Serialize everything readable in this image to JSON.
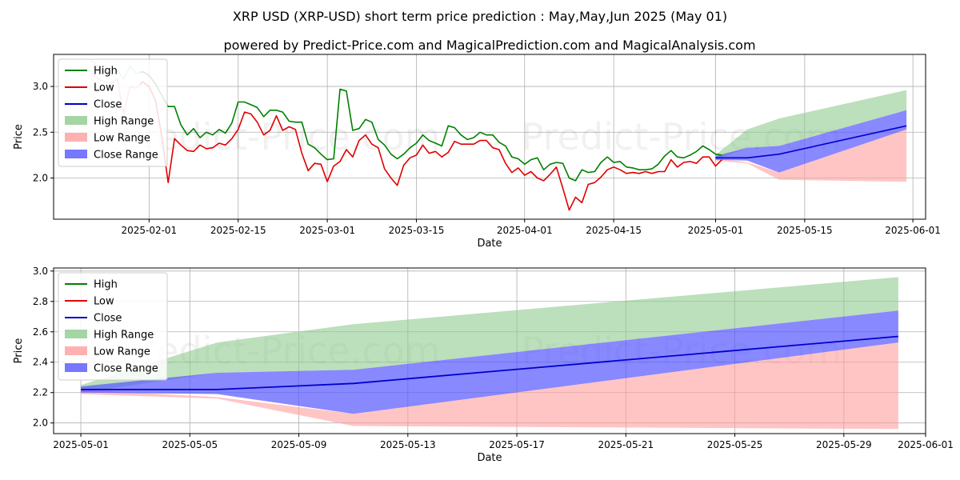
{
  "title_line1": "XRP USD (XRP-USD) short term price prediction : May,May,Jun 2025 (May 01)",
  "title_line2": "powered by Predict-Price.com and MagicalPrediction.com and MagicalAnalysis.com",
  "watermark": "Predict-Price.com",
  "colors": {
    "high": "#008000",
    "low": "#e00000",
    "close": "#0000cc",
    "high_range": "#8fca8f",
    "low_range": "#ff9e9e",
    "close_range": "#5555ff"
  },
  "chart_data": [
    {
      "type": "line",
      "xlabel": "Date",
      "ylabel": "Price",
      "x_type": "date",
      "xlim": [
        "2025-01-17",
        "2025-06-03"
      ],
      "ylim": [
        1.55,
        3.35
      ],
      "grid": true,
      "legend_position": "top-left",
      "x_ticks": [
        "2025-02-01",
        "2025-02-15",
        "2025-03-01",
        "2025-03-15",
        "2025-04-01",
        "2025-04-15",
        "2025-05-01",
        "2025-05-15",
        "2025-06-01"
      ],
      "y_ticks": [
        "2.0",
        "2.5",
        "3.0"
      ],
      "legend": [
        "High",
        "Low",
        "Close",
        "High Range",
        "Low Range",
        "Close Range"
      ],
      "history_start": "2025-01-23",
      "high_hist": [
        3.28,
        3.22,
        3.15,
        3.12,
        3.18,
        3.08,
        3.22,
        3.14,
        3.16,
        3.12,
        3.03,
        2.9,
        2.78,
        2.78,
        2.58,
        2.47,
        2.54,
        2.44,
        2.5,
        2.47,
        2.53,
        2.49,
        2.6,
        2.83,
        2.83,
        2.8,
        2.77,
        2.67,
        2.74,
        2.74,
        2.72,
        2.62,
        2.61,
        2.61,
        2.37,
        2.33,
        2.26,
        2.2,
        2.21,
        2.97,
        2.95,
        2.52,
        2.54,
        2.64,
        2.61,
        2.42,
        2.36,
        2.26,
        2.21,
        2.26,
        2.33,
        2.38,
        2.47,
        2.41,
        2.38,
        2.35,
        2.57,
        2.55,
        2.47,
        2.42,
        2.44,
        2.5,
        2.47,
        2.47,
        2.39,
        2.35,
        2.23,
        2.21,
        2.15,
        2.2,
        2.22,
        2.09,
        2.15,
        2.17,
        2.16,
        2.0,
        1.97,
        2.09,
        2.06,
        2.07,
        2.17,
        2.23,
        2.17,
        2.18,
        2.12,
        2.11,
        2.09,
        2.09,
        2.1,
        2.15,
        2.24,
        2.3,
        2.23,
        2.22,
        2.25,
        2.29,
        2.35,
        2.31,
        2.26,
        2.25
      ],
      "low_hist": [
        3.15,
        3.08,
        3.05,
        3.03,
        3.08,
        2.7,
        3.0,
        2.98,
        3.05,
        3.0,
        2.85,
        2.45,
        1.95,
        2.43,
        2.36,
        2.3,
        2.29,
        2.36,
        2.32,
        2.33,
        2.38,
        2.36,
        2.43,
        2.53,
        2.72,
        2.7,
        2.61,
        2.47,
        2.52,
        2.68,
        2.52,
        2.56,
        2.53,
        2.27,
        2.08,
        2.16,
        2.15,
        1.96,
        2.13,
        2.18,
        2.31,
        2.23,
        2.41,
        2.47,
        2.37,
        2.33,
        2.1,
        2.0,
        1.92,
        2.14,
        2.22,
        2.25,
        2.36,
        2.27,
        2.29,
        2.23,
        2.28,
        2.4,
        2.37,
        2.37,
        2.37,
        2.41,
        2.41,
        2.33,
        2.31,
        2.16,
        2.06,
        2.11,
        2.03,
        2.07,
        2.0,
        1.97,
        2.04,
        2.12,
        1.89,
        1.65,
        1.79,
        1.73,
        1.93,
        1.95,
        2.01,
        2.09,
        2.12,
        2.09,
        2.05,
        2.06,
        2.05,
        2.07,
        2.05,
        2.07,
        2.07,
        2.2,
        2.12,
        2.17,
        2.18,
        2.16,
        2.23,
        2.23,
        2.13,
        2.2
      ]
    },
    {
      "type": "area",
      "xlabel": "Date",
      "ylabel": "Price",
      "x_type": "date",
      "xlim": [
        "2025-04-30",
        "2025-06-01"
      ],
      "ylim": [
        1.93,
        3.02
      ],
      "grid": true,
      "legend_position": "top-left",
      "x_ticks": [
        "2025-05-01",
        "2025-05-05",
        "2025-05-09",
        "2025-05-13",
        "2025-05-17",
        "2025-05-21",
        "2025-05-25",
        "2025-05-29",
        "2025-06-01"
      ],
      "y_ticks": [
        "2.0",
        "2.2",
        "2.4",
        "2.6",
        "2.8",
        "3.0"
      ],
      "legend": [
        "High",
        "Low",
        "Close",
        "High Range",
        "Low Range",
        "Close Range"
      ],
      "forecast_dates": [
        "2025-05-01",
        "2025-05-06",
        "2025-05-11",
        "2025-05-31"
      ],
      "high_range_upper": [
        2.25,
        2.53,
        2.65,
        2.96
      ],
      "high_range_lower": [
        2.2,
        2.33,
        2.35,
        2.74
      ],
      "low_range_upper": [
        2.22,
        2.17,
        2.06,
        2.53
      ],
      "low_range_lower": [
        2.19,
        2.16,
        1.98,
        1.96
      ],
      "close_range_upper": [
        2.24,
        2.33,
        2.35,
        2.74
      ],
      "close_range_lower": [
        2.2,
        2.19,
        2.06,
        2.53
      ],
      "close_line": [
        2.22,
        2.22,
        2.26,
        2.57
      ]
    }
  ]
}
